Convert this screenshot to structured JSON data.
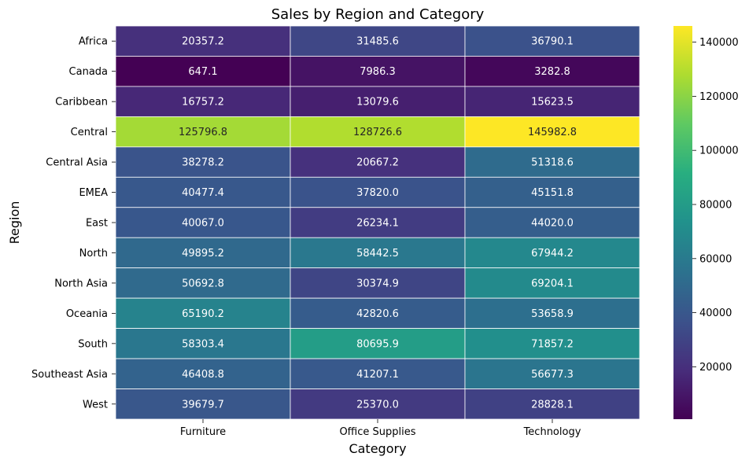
{
  "chart_data": {
    "type": "heatmap",
    "title": "Sales by Region and Category",
    "xlabel": "Category",
    "ylabel": "Region",
    "x_categories": [
      "Furniture",
      "Office Supplies",
      "Technology"
    ],
    "y_categories": [
      "Africa",
      "Canada",
      "Caribbean",
      "Central",
      "Central Asia",
      "EMEA",
      "East",
      "North",
      "North Asia",
      "Oceania",
      "South",
      "Southeast Asia",
      "West"
    ],
    "values": [
      [
        20357.2,
        31485.6,
        36790.1
      ],
      [
        647.1,
        7986.3,
        3282.8
      ],
      [
        16757.2,
        13079.6,
        15623.5
      ],
      [
        125796.8,
        128726.6,
        145982.8
      ],
      [
        38278.2,
        20667.2,
        51318.6
      ],
      [
        40477.4,
        37820.0,
        45151.8
      ],
      [
        40067.0,
        26234.1,
        44020.0
      ],
      [
        49895.2,
        58442.5,
        67944.2
      ],
      [
        50692.8,
        30374.9,
        69204.1
      ],
      [
        65190.2,
        42820.6,
        53658.9
      ],
      [
        58303.4,
        80695.9,
        71857.2
      ],
      [
        46408.8,
        41207.1,
        56677.3
      ],
      [
        39679.7,
        25370.0,
        28828.1
      ]
    ],
    "value_labels": [
      [
        "20357.2",
        "31485.6",
        "36790.1"
      ],
      [
        "647.1",
        "7986.3",
        "3282.8"
      ],
      [
        "16757.2",
        "13079.6",
        "15623.5"
      ],
      [
        "125796.8",
        "128726.6",
        "145982.8"
      ],
      [
        "38278.2",
        "20667.2",
        "51318.6"
      ],
      [
        "40477.4",
        "37820.0",
        "45151.8"
      ],
      [
        "40067.0",
        "26234.1",
        "44020.0"
      ],
      [
        "49895.2",
        "58442.5",
        "67944.2"
      ],
      [
        "50692.8",
        "30374.9",
        "69204.1"
      ],
      [
        "65190.2",
        "42820.6",
        "53658.9"
      ],
      [
        "58303.4",
        "80695.9",
        "71857.2"
      ],
      [
        "46408.8",
        "41207.1",
        "56677.3"
      ],
      [
        "39679.7",
        "25370.0",
        "28828.1"
      ]
    ],
    "colormap": "viridis",
    "colorbar": {
      "min": 647.1,
      "max": 145982.8,
      "ticks": [
        20000,
        40000,
        60000,
        80000,
        100000,
        120000,
        140000
      ],
      "tick_labels": [
        "20000",
        "40000",
        "60000",
        "80000",
        "100000",
        "120000",
        "140000"
      ]
    },
    "grid": false
  }
}
